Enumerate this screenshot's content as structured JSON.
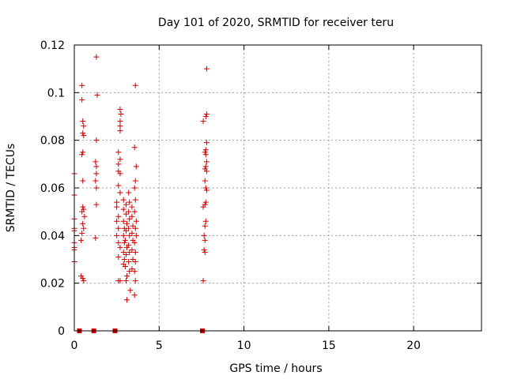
{
  "chart_data": {
    "type": "scatter",
    "title": "Day 101 of 2020, SRMTID for receiver teru",
    "xlabel": "GPS time / hours",
    "ylabel": "SRMTID / TECUs",
    "xlim": [
      0,
      24
    ],
    "ylim": [
      0,
      0.12
    ],
    "x_ticks": [
      0,
      5,
      10,
      15,
      20
    ],
    "y_ticks": [
      0,
      0.02,
      0.04,
      0.06,
      0.08,
      0.1,
      0.12
    ],
    "x_tick_labels": [
      "0",
      "5",
      "10",
      "15",
      "20"
    ],
    "y_tick_labels": [
      "0",
      "0.02",
      "0.04",
      "0.06",
      "0.08",
      "0.1",
      "0.12"
    ],
    "grid": true,
    "point_color": "#cc0000",
    "marker": "plus",
    "series": [
      {
        "points": [
          [
            0.0,
            0.066
          ],
          [
            0.0,
            0.057
          ],
          [
            0.0,
            0.047
          ],
          [
            0.0,
            0.043
          ],
          [
            0.0,
            0.042
          ],
          [
            0.0,
            0.037
          ],
          [
            0.0,
            0.035
          ],
          [
            0.0,
            0.034
          ],
          [
            0.0,
            0.029
          ],
          [
            0.45,
            0.103
          ],
          [
            0.45,
            0.097
          ],
          [
            0.5,
            0.088
          ],
          [
            0.55,
            0.086
          ],
          [
            0.5,
            0.083
          ],
          [
            0.55,
            0.082
          ],
          [
            0.5,
            0.075
          ],
          [
            0.45,
            0.074
          ],
          [
            0.5,
            0.063
          ],
          [
            0.5,
            0.052
          ],
          [
            0.55,
            0.051
          ],
          [
            0.45,
            0.05
          ],
          [
            0.6,
            0.048
          ],
          [
            0.5,
            0.045
          ],
          [
            0.55,
            0.043
          ],
          [
            0.45,
            0.041
          ],
          [
            0.4,
            0.038
          ],
          [
            0.4,
            0.023
          ],
          [
            0.5,
            0.022
          ],
          [
            0.55,
            0.021
          ],
          [
            1.3,
            0.115
          ],
          [
            1.35,
            0.099
          ],
          [
            1.3,
            0.08
          ],
          [
            1.25,
            0.071
          ],
          [
            1.3,
            0.069
          ],
          [
            1.3,
            0.066
          ],
          [
            1.25,
            0.063
          ],
          [
            1.3,
            0.06
          ],
          [
            1.3,
            0.053
          ],
          [
            1.25,
            0.039
          ],
          [
            2.7,
            0.093
          ],
          [
            2.75,
            0.091
          ],
          [
            2.7,
            0.088
          ],
          [
            2.7,
            0.086
          ],
          [
            2.7,
            0.084
          ],
          [
            2.6,
            0.075
          ],
          [
            2.7,
            0.072
          ],
          [
            2.6,
            0.07
          ],
          [
            2.6,
            0.067
          ],
          [
            2.7,
            0.066
          ],
          [
            2.6,
            0.061
          ],
          [
            2.7,
            0.058
          ],
          [
            2.5,
            0.054
          ],
          [
            2.5,
            0.052
          ],
          [
            2.6,
            0.048
          ],
          [
            2.5,
            0.046
          ],
          [
            2.6,
            0.043
          ],
          [
            2.5,
            0.04
          ],
          [
            2.6,
            0.037
          ],
          [
            2.7,
            0.035
          ],
          [
            2.6,
            0.031
          ],
          [
            2.7,
            0.021
          ],
          [
            2.6,
            0.021
          ],
          [
            2.9,
            0.055
          ],
          [
            2.9,
            0.051
          ],
          [
            2.9,
            0.046
          ],
          [
            2.95,
            0.043
          ],
          [
            2.9,
            0.04
          ],
          [
            2.95,
            0.037
          ],
          [
            2.9,
            0.033
          ],
          [
            2.95,
            0.03
          ],
          [
            2.9,
            0.028
          ],
          [
            3.05,
            0.053
          ],
          [
            3.05,
            0.049
          ],
          [
            3.1,
            0.045
          ],
          [
            3.05,
            0.042
          ],
          [
            3.0,
            0.038
          ],
          [
            3.1,
            0.035
          ],
          [
            3.05,
            0.032
          ],
          [
            3.0,
            0.027
          ],
          [
            3.1,
            0.023
          ],
          [
            3.05,
            0.021
          ],
          [
            3.2,
            0.058
          ],
          [
            3.25,
            0.054
          ],
          [
            3.2,
            0.05
          ],
          [
            3.25,
            0.047
          ],
          [
            3.2,
            0.043
          ],
          [
            3.25,
            0.04
          ],
          [
            3.2,
            0.036
          ],
          [
            3.25,
            0.033
          ],
          [
            3.2,
            0.029
          ],
          [
            3.25,
            0.025
          ],
          [
            3.1,
            0.013
          ],
          [
            3.4,
            0.052
          ],
          [
            3.4,
            0.048
          ],
          [
            3.45,
            0.044
          ],
          [
            3.4,
            0.041
          ],
          [
            3.45,
            0.038
          ],
          [
            3.4,
            0.034
          ],
          [
            3.45,
            0.03
          ],
          [
            3.4,
            0.026
          ],
          [
            3.3,
            0.017
          ],
          [
            3.6,
            0.103
          ],
          [
            3.55,
            0.077
          ],
          [
            3.65,
            0.069
          ],
          [
            3.6,
            0.063
          ],
          [
            3.55,
            0.06
          ],
          [
            3.6,
            0.055
          ],
          [
            3.55,
            0.05
          ],
          [
            3.65,
            0.046
          ],
          [
            3.6,
            0.043
          ],
          [
            3.65,
            0.04
          ],
          [
            3.55,
            0.037
          ],
          [
            3.6,
            0.033
          ],
          [
            3.6,
            0.029
          ],
          [
            3.55,
            0.025
          ],
          [
            3.6,
            0.021
          ],
          [
            3.55,
            0.015
          ],
          [
            7.8,
            0.11
          ],
          [
            7.8,
            0.091
          ],
          [
            7.75,
            0.09
          ],
          [
            7.6,
            0.088
          ],
          [
            7.8,
            0.079
          ],
          [
            7.75,
            0.076
          ],
          [
            7.7,
            0.075
          ],
          [
            7.75,
            0.074
          ],
          [
            7.8,
            0.071
          ],
          [
            7.75,
            0.069
          ],
          [
            7.7,
            0.068
          ],
          [
            7.8,
            0.067
          ],
          [
            7.7,
            0.063
          ],
          [
            7.75,
            0.06
          ],
          [
            7.8,
            0.059
          ],
          [
            7.75,
            0.054
          ],
          [
            7.7,
            0.053
          ],
          [
            7.6,
            0.052
          ],
          [
            7.75,
            0.046
          ],
          [
            7.7,
            0.044
          ],
          [
            7.65,
            0.04
          ],
          [
            7.7,
            0.038
          ],
          [
            7.65,
            0.034
          ],
          [
            7.7,
            0.033
          ],
          [
            7.6,
            0.021
          ]
        ]
      },
      {
        "marker": "square",
        "points": [
          [
            0.3,
            0
          ],
          [
            1.15,
            0
          ],
          [
            2.4,
            0
          ],
          [
            7.55,
            0
          ]
        ]
      }
    ]
  }
}
